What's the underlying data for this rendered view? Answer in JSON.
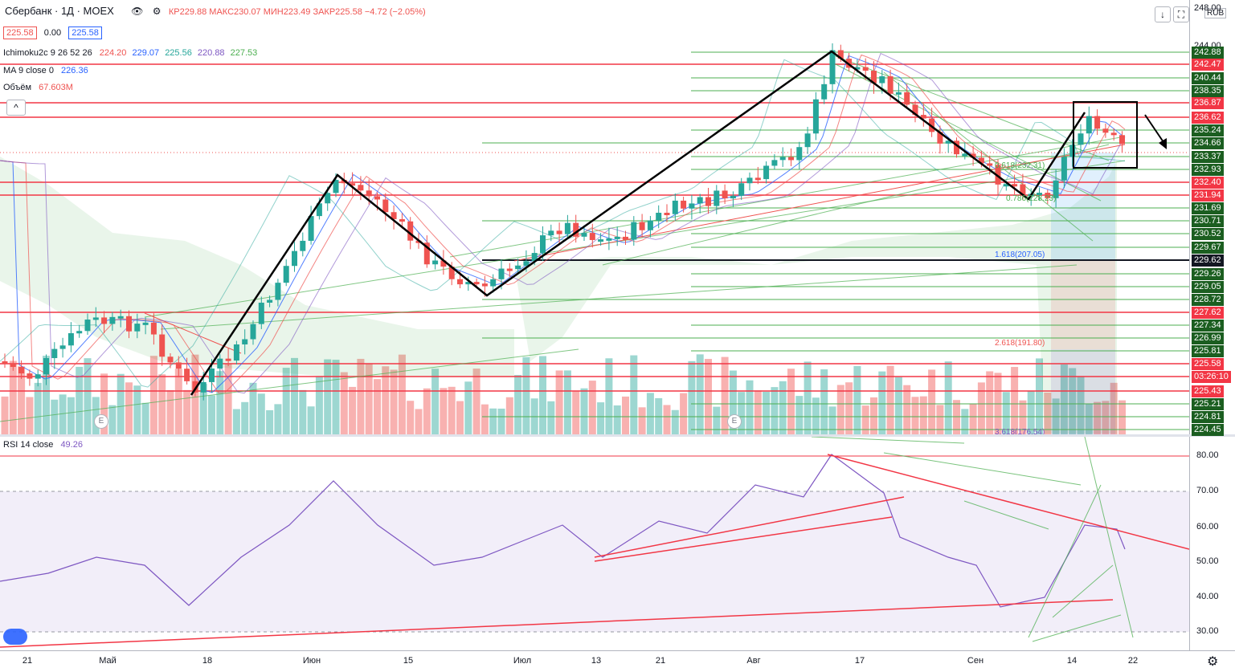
{
  "header": {
    "symbol": "Сбербанк · 1Д · MOEX",
    "ohlc_tail": "КР229.88  МАКС230.07  МИН223.49  ЗАКР225.58  −4.72 (−2.05%)",
    "price_box": "225.58",
    "change_box": "0.00",
    "price_box2": "225.58",
    "currency": "RUB",
    "collapse_label": "^"
  },
  "indicators": {
    "ichimoku": {
      "name": "Ichimoku2c 9 26 52 26",
      "v1": "224.20",
      "v2": "229.07",
      "v3": "225.56",
      "v4": "220.88",
      "v5": "227.53"
    },
    "ma": {
      "name": "MA 9 close 0",
      "value": "226.36"
    },
    "volume": {
      "name": "Объём",
      "value": "67.603M"
    },
    "rsi": {
      "name": "RSI 14 close",
      "value": "49.26"
    }
  },
  "colors": {
    "up": "#26a69a",
    "down": "#ef5350",
    "level_red": "#f23645",
    "level_green": "#4caf50",
    "rsi_line": "#7e57c2",
    "accent_blue": "#2962ff"
  },
  "price_scale": {
    "labels": [
      {
        "text": "248.00",
        "style": "plain"
      },
      {
        "text": "244.00",
        "style": "plain"
      },
      {
        "text": "242.88",
        "style": "green"
      },
      {
        "text": "242.47",
        "style": "red"
      },
      {
        "text": "240.44",
        "style": "green"
      },
      {
        "text": "238.35",
        "style": "green"
      },
      {
        "text": "236.87",
        "style": "red"
      },
      {
        "text": "236.62",
        "style": "red"
      },
      {
        "text": "235.24",
        "style": "green"
      },
      {
        "text": "234.66",
        "style": "green"
      },
      {
        "text": "233.37",
        "style": "green"
      },
      {
        "text": "232.93",
        "style": "green"
      },
      {
        "text": "232.40",
        "style": "red"
      },
      {
        "text": "231.94",
        "style": "red"
      },
      {
        "text": "231.69",
        "style": "green"
      },
      {
        "text": "230.71",
        "style": "green"
      },
      {
        "text": "230.52",
        "style": "green"
      },
      {
        "text": "229.67",
        "style": "green"
      },
      {
        "text": "229.62",
        "style": "black"
      },
      {
        "text": "229.26",
        "style": "green"
      },
      {
        "text": "229.05",
        "style": "green"
      },
      {
        "text": "228.72",
        "style": "green"
      },
      {
        "text": "227.62",
        "style": "red"
      },
      {
        "text": "227.34",
        "style": "green"
      },
      {
        "text": "226.99",
        "style": "green"
      },
      {
        "text": "225.81",
        "style": "green"
      },
      {
        "text": "225.58",
        "style": "red"
      },
      {
        "text": "03:26:10",
        "style": "red"
      },
      {
        "text": "225.43",
        "style": "red"
      },
      {
        "text": "225.21",
        "style": "green"
      },
      {
        "text": "224.81",
        "style": "green"
      },
      {
        "text": "224.45",
        "style": "green"
      }
    ]
  },
  "fib_labels": [
    "1.618(207.05)",
    "2.618(191.80)",
    "3.618(176.54)",
    "0.618(232.31)",
    "0.786(228.23)"
  ],
  "earnings_marker": "E",
  "rsi_scale": {
    "ticks": [
      "80.00",
      "70.00",
      "60.00",
      "50.00",
      "40.00",
      "30.00"
    ]
  },
  "time_axis": {
    "ticks": [
      "21",
      "Май",
      "18",
      "Июн",
      "15",
      "Июл",
      "13",
      "21",
      "Авг",
      "17",
      "Сен",
      "14",
      "22"
    ]
  }
}
